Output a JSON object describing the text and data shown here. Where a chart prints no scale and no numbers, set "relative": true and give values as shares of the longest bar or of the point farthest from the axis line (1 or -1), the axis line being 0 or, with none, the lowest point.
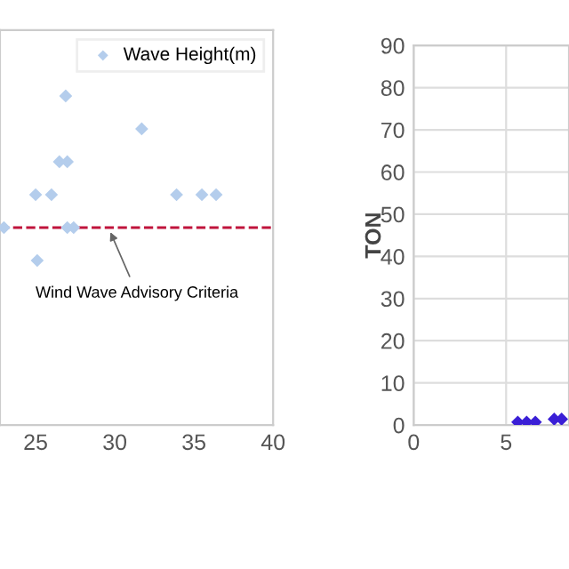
{
  "chart_data": [
    {
      "type": "scatter",
      "relative": true,
      "x": [
        23,
        25,
        26,
        25.1,
        26.5,
        27,
        26.9,
        27,
        27.4,
        31.7,
        33.9,
        35.5,
        36.4
      ],
      "series": [
        {
          "name": "Wave Height(m)",
          "color": "#b4cdec",
          "values": [
            0.6,
            0.7,
            0.7,
            0.5,
            0.8,
            0.8,
            1.0,
            0.6,
            0.6,
            0.9,
            0.7,
            0.7,
            0.7
          ]
        }
      ],
      "xlim": [
        22.75,
        40
      ],
      "xticks": [
        25,
        30,
        35,
        40
      ],
      "marker": "diamond",
      "legend": "top right",
      "ref_lines": [
        {
          "axis": "y",
          "value": 0.6,
          "color": "#c0143c",
          "line_style": "dashed"
        }
      ],
      "annotations": [
        {
          "text": "Wind Wave Advisory Criteria",
          "x": 29.6,
          "y": 0.6
        }
      ]
    },
    {
      "type": "scatter",
      "x": [
        5.63,
        6.11,
        6.58,
        7.6,
        8.0
      ],
      "series": [
        {
          "color": "#3a1fd6",
          "values": [
            0.7,
            0.7,
            0.7,
            1.4,
            1.4
          ]
        }
      ],
      "xlim": [
        0,
        8.4
      ],
      "xticks": [
        0,
        5
      ],
      "ylim": [
        0,
        90
      ],
      "yticks": [
        0,
        10,
        20,
        30,
        40,
        50,
        60,
        70,
        80,
        90
      ],
      "ylabel": "TON",
      "marker": "diamond",
      "grid": true
    }
  ]
}
